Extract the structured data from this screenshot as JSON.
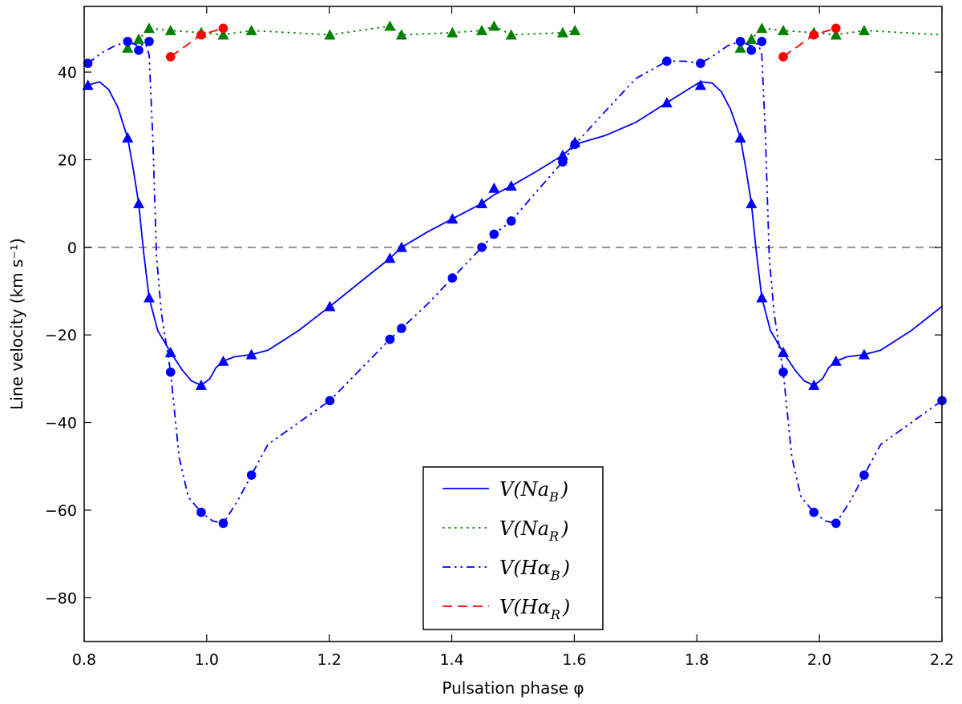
{
  "chart_data": {
    "type": "line",
    "xlabel": "Pulsation phase φ",
    "ylabel": "Line velocity (km s⁻¹)",
    "xlim": [
      0.8,
      2.2
    ],
    "ylim": [
      -90,
      55
    ],
    "xticks": [
      0.8,
      1.0,
      1.2,
      1.4,
      1.6,
      1.8,
      2.0,
      2.2
    ],
    "xtick_labels": [
      "0.8",
      "1.0",
      "1.2",
      "1.4",
      "1.6",
      "1.8",
      "2.0",
      "2.2"
    ],
    "yticks": [
      -80,
      -60,
      -40,
      -20,
      0,
      20,
      40
    ],
    "ytick_labels": [
      "−80",
      "−60",
      "−40",
      "−20",
      "0",
      "20",
      "40"
    ],
    "reference_line": {
      "y": 0,
      "color": "#888888",
      "style": "dashed"
    },
    "legend_position": "bottom-center",
    "series": [
      {
        "name": "V(Na_B)",
        "legend": {
          "base": "V(Na",
          "sub": "B",
          "close": ")"
        },
        "color": "#0000ff",
        "line_style": "solid",
        "marker": "triangle",
        "x": [
          0.806,
          0.871,
          0.889,
          0.906,
          0.941,
          0.991,
          1.027,
          1.073,
          1.201,
          1.299,
          1.318,
          1.401,
          1.449,
          1.469,
          1.497,
          1.581,
          1.601,
          1.751,
          1.806,
          1.871,
          1.889,
          1.906,
          1.941,
          1.991,
          2.027,
          2.073
        ],
        "y": [
          37,
          25,
          10,
          -11.5,
          -24,
          -31.5,
          -26,
          -24.5,
          -13.5,
          -2.5,
          0,
          6.5,
          10,
          13.5,
          14,
          21,
          24,
          33,
          37,
          25,
          10,
          -11.5,
          -24,
          -31.5,
          -26,
          -24.5
        ],
        "curve": [
          [
            0.806,
            37
          ],
          [
            0.825,
            37.8
          ],
          [
            0.84,
            36
          ],
          [
            0.855,
            32
          ],
          [
            0.865,
            27.5
          ],
          [
            0.871,
            25
          ],
          [
            0.88,
            18
          ],
          [
            0.889,
            10
          ],
          [
            0.897,
            -1
          ],
          [
            0.906,
            -11.5
          ],
          [
            0.92,
            -19
          ],
          [
            0.941,
            -24
          ],
          [
            0.96,
            -28
          ],
          [
            0.975,
            -30.5
          ],
          [
            0.991,
            -31.5
          ],
          [
            1.005,
            -30
          ],
          [
            1.015,
            -27.5
          ],
          [
            1.027,
            -26
          ],
          [
            1.045,
            -25
          ],
          [
            1.073,
            -24.5
          ],
          [
            1.1,
            -23.5
          ],
          [
            1.15,
            -19
          ],
          [
            1.201,
            -13.5
          ],
          [
            1.25,
            -8
          ],
          [
            1.299,
            -2.5
          ],
          [
            1.318,
            0
          ],
          [
            1.36,
            3.5
          ],
          [
            1.401,
            6.5
          ],
          [
            1.449,
            10
          ],
          [
            1.469,
            12
          ],
          [
            1.497,
            14
          ],
          [
            1.54,
            17.5
          ],
          [
            1.581,
            21
          ],
          [
            1.601,
            23.5
          ],
          [
            1.65,
            25.5
          ],
          [
            1.7,
            28.5
          ],
          [
            1.751,
            33
          ],
          [
            1.785,
            36
          ],
          [
            1.806,
            37.8
          ],
          [
            1.825,
            37.5
          ],
          [
            1.84,
            35.5
          ],
          [
            1.855,
            31.5
          ],
          [
            1.865,
            27.5
          ],
          [
            1.871,
            25
          ],
          [
            1.88,
            18
          ],
          [
            1.889,
            10
          ],
          [
            1.897,
            -1
          ],
          [
            1.906,
            -11.5
          ],
          [
            1.92,
            -19
          ],
          [
            1.941,
            -24
          ],
          [
            1.96,
            -28
          ],
          [
            1.975,
            -30.5
          ],
          [
            1.991,
            -31.5
          ],
          [
            2.005,
            -30
          ],
          [
            2.015,
            -27.5
          ],
          [
            2.027,
            -26
          ],
          [
            2.045,
            -25
          ],
          [
            2.073,
            -24.5
          ],
          [
            2.1,
            -23.5
          ],
          [
            2.15,
            -19
          ],
          [
            2.2,
            -13.5
          ]
        ]
      },
      {
        "name": "V(Na_R)",
        "legend": {
          "base": "V(Na",
          "sub": "R",
          "close": ")"
        },
        "color": "#008000",
        "line_style": "dotted",
        "marker": "triangle",
        "x": [
          0.871,
          0.889,
          0.906,
          0.941,
          0.991,
          1.027,
          1.073,
          1.201,
          1.299,
          1.318,
          1.401,
          1.449,
          1.469,
          1.497,
          1.581,
          1.601,
          1.871,
          1.889,
          1.906,
          1.941,
          1.991,
          2.027,
          2.073
        ],
        "y": [
          45.5,
          47.5,
          50,
          49.5,
          49,
          48.5,
          49.5,
          48.5,
          50.5,
          48.5,
          49,
          49.5,
          50.5,
          48.5,
          49,
          49.5,
          45.5,
          47.5,
          50,
          49.5,
          49,
          48.5,
          49.5
        ],
        "curve": [
          [
            0.871,
            45.5
          ],
          [
            0.889,
            47.5
          ],
          [
            0.906,
            50
          ],
          [
            0.941,
            49.5
          ],
          [
            0.991,
            49
          ],
          [
            1.027,
            48.5
          ],
          [
            1.073,
            49.5
          ],
          [
            1.201,
            48.5
          ],
          [
            1.299,
            50.5
          ],
          [
            1.318,
            48.5
          ],
          [
            1.401,
            49
          ],
          [
            1.449,
            49.5
          ],
          [
            1.469,
            50.5
          ],
          [
            1.497,
            48.5
          ],
          [
            1.581,
            49
          ],
          [
            1.601,
            49.5
          ]
        ],
        "curve2": [
          [
            1.871,
            45.5
          ],
          [
            1.889,
            47.5
          ],
          [
            1.906,
            50
          ],
          [
            1.941,
            49.5
          ],
          [
            1.991,
            49
          ],
          [
            2.027,
            48.5
          ],
          [
            2.073,
            49.5
          ],
          [
            2.2,
            48.5
          ]
        ]
      },
      {
        "name": "V(Hα_B)",
        "legend": {
          "base": "V(Hα",
          "sub": "B",
          "close": ")"
        },
        "color": "#0000ff",
        "line_style": "dashdot",
        "marker": "circle",
        "x": [
          0.806,
          0.871,
          0.889,
          0.906,
          0.941,
          0.991,
          1.027,
          1.073,
          1.201,
          1.299,
          1.318,
          1.401,
          1.449,
          1.469,
          1.497,
          1.581,
          1.601,
          1.751,
          1.806,
          1.871,
          1.889,
          1.906,
          1.941,
          1.991,
          2.027,
          2.073,
          2.2
        ],
        "y": [
          42,
          47,
          45,
          47,
          -28.5,
          -60.5,
          -63,
          -52,
          -35,
          -21,
          -18.5,
          -7,
          0,
          3,
          6,
          19.5,
          23.5,
          42.5,
          42,
          47,
          45,
          47,
          -28.5,
          -60.5,
          -63,
          -52,
          -35
        ],
        "curve": [
          [
            0.806,
            42
          ],
          [
            0.83,
            44.5
          ],
          [
            0.85,
            46
          ],
          [
            0.871,
            47
          ],
          [
            0.88,
            46.5
          ],
          [
            0.889,
            46
          ],
          [
            0.9,
            46.5
          ],
          [
            0.906,
            44
          ],
          [
            0.912,
            25
          ],
          [
            0.918,
            -2
          ],
          [
            0.926,
            -15
          ],
          [
            0.941,
            -28.5
          ],
          [
            0.955,
            -48
          ],
          [
            0.97,
            -57
          ],
          [
            0.991,
            -60.5
          ],
          [
            1.01,
            -62.5
          ],
          [
            1.027,
            -63
          ],
          [
            1.05,
            -58
          ],
          [
            1.073,
            -52
          ],
          [
            1.1,
            -45
          ],
          [
            1.15,
            -40
          ],
          [
            1.201,
            -35
          ],
          [
            1.25,
            -28
          ],
          [
            1.299,
            -21
          ],
          [
            1.318,
            -18.5
          ],
          [
            1.36,
            -13
          ],
          [
            1.401,
            -7
          ],
          [
            1.449,
            0
          ],
          [
            1.469,
            3
          ],
          [
            1.497,
            6
          ],
          [
            1.54,
            13
          ],
          [
            1.581,
            19.5
          ],
          [
            1.601,
            23.5
          ],
          [
            1.65,
            31
          ],
          [
            1.7,
            38.5
          ],
          [
            1.751,
            42.5
          ],
          [
            1.78,
            42.5
          ],
          [
            1.806,
            42
          ],
          [
            1.83,
            44
          ],
          [
            1.85,
            46
          ],
          [
            1.871,
            47
          ],
          [
            1.88,
            46.5
          ],
          [
            1.889,
            46
          ],
          [
            1.9,
            46.5
          ],
          [
            1.906,
            44
          ],
          [
            1.912,
            25
          ],
          [
            1.918,
            -2
          ],
          [
            1.926,
            -15
          ],
          [
            1.941,
            -28.5
          ],
          [
            1.955,
            -48
          ],
          [
            1.97,
            -57
          ],
          [
            1.991,
            -60.5
          ],
          [
            2.01,
            -62.5
          ],
          [
            2.027,
            -63
          ],
          [
            2.05,
            -58
          ],
          [
            2.073,
            -52
          ],
          [
            2.1,
            -45
          ],
          [
            2.15,
            -40
          ],
          [
            2.2,
            -35
          ]
        ]
      },
      {
        "name": "V(Hα_R)",
        "legend": {
          "base": "V(Hα",
          "sub": "R",
          "close": ")"
        },
        "color": "#ff0000",
        "line_style": "dashed",
        "marker": "circle",
        "x": [
          0.941,
          0.991,
          1.027,
          1.941,
          1.991,
          2.027
        ],
        "y": [
          43.5,
          48.5,
          50,
          43.5,
          48.5,
          50
        ],
        "curve": [
          [
            0.941,
            43.5
          ],
          [
            0.991,
            48.5
          ],
          [
            1.027,
            50
          ]
        ],
        "curve2": [
          [
            1.941,
            43.5
          ],
          [
            1.991,
            48.5
          ],
          [
            2.027,
            50
          ]
        ]
      }
    ]
  }
}
